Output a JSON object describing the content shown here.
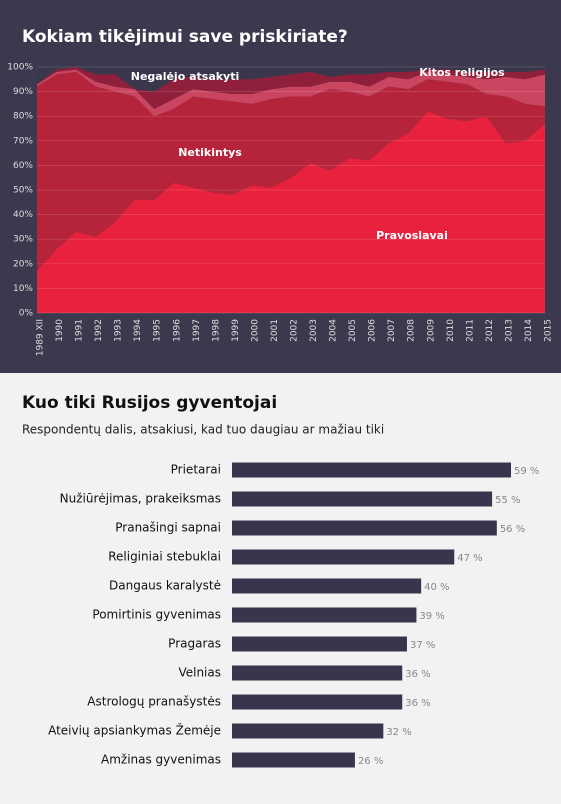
{
  "charts": [
    {
      "type": "stacked-area",
      "title": "Kokiam tikėjimui save priskiriate?",
      "categories": [
        "1989 XII",
        "1990",
        "1991",
        "1992",
        "1993",
        "1994",
        "1995",
        "1996",
        "1997",
        "1998",
        "1999",
        "2000",
        "2001",
        "2002",
        "2003",
        "2004",
        "2005",
        "2006",
        "2007",
        "2008",
        "2009",
        "2010",
        "2011",
        "2012",
        "2013",
        "2014",
        "2015"
      ],
      "series": [
        {
          "name": "Pravoslavai",
          "color": "#e8223d",
          "values": [
            17,
            26,
            33,
            31,
            37,
            46,
            46,
            53,
            51,
            49,
            48,
            52,
            51,
            55,
            61,
            58,
            63,
            62,
            69,
            73,
            82,
            79,
            78,
            80,
            69,
            70,
            77
          ]
        },
        {
          "name": "Netikintys",
          "color": "#b5243b",
          "values": [
            75,
            71,
            65,
            61,
            53,
            42,
            34,
            30,
            37,
            38,
            38,
            33,
            36,
            33,
            27,
            33,
            27,
            26,
            23,
            18,
            13,
            15,
            15,
            9,
            19,
            15,
            7
          ]
        },
        {
          "name": "Kitos religijos",
          "color": "#c94560",
          "values": [
            1,
            1,
            1,
            2,
            2,
            3,
            3,
            4,
            3,
            3,
            3,
            4,
            4,
            4,
            4,
            3,
            4,
            4,
            4,
            4,
            3,
            3,
            3,
            6,
            8,
            10,
            13
          ]
        },
        {
          "name": "Negalėjo atsakyti",
          "color": "#8f1f3a",
          "values": [
            0,
            1,
            1,
            3,
            5,
            0,
            7,
            8,
            5,
            5,
            6,
            6,
            5,
            5,
            6,
            2,
            3,
            5,
            2,
            3,
            1,
            2,
            2,
            3,
            2,
            3,
            2
          ]
        }
      ],
      "ylim": [
        0,
        100
      ],
      "yticks": [
        {
          "value": 0,
          "label": "0%"
        },
        {
          "value": 10,
          "label": "10%"
        },
        {
          "value": 20,
          "label": "20%"
        },
        {
          "value": 30,
          "label": "30%"
        },
        {
          "value": 40,
          "label": "40%"
        },
        {
          "value": 50,
          "label": "50%"
        },
        {
          "value": 60,
          "label": "60%"
        },
        {
          "value": 70,
          "label": "70%"
        },
        {
          "value": 80,
          "label": "80%"
        },
        {
          "value": 90,
          "label": "90%"
        },
        {
          "value": 100,
          "label": "100%"
        }
      ],
      "grid": true
    },
    {
      "type": "hbar",
      "title": "Kuo tiki Rusijos gyventojai",
      "subtitle": "Respondentų dalis, atsakiusi, kad tuo daugiau ar mažiau tiki",
      "categories": [
        "Prietarai",
        "Nužiūrėjimas, prakeiksmas",
        "Pranašingi sapnai",
        "Religiniai stebuklai",
        "Dangaus karalystė",
        "Pomirtinis gyvenimas",
        "Pragaras",
        "Velnias",
        "Astrologų pranašystės",
        "Ateivių apsiankymas Žemėje",
        "Amžinas gyvenimas"
      ],
      "values": [
        59,
        55,
        56,
        47,
        40,
        39,
        37,
        36,
        36,
        32,
        26
      ],
      "value_labels": [
        "59 %",
        "55 %",
        "56 %",
        "47 %",
        "40 %",
        "39 %",
        "37 %",
        "36 %",
        "36 %",
        "32 %",
        "26 %"
      ],
      "color": "#39354d"
    }
  ]
}
